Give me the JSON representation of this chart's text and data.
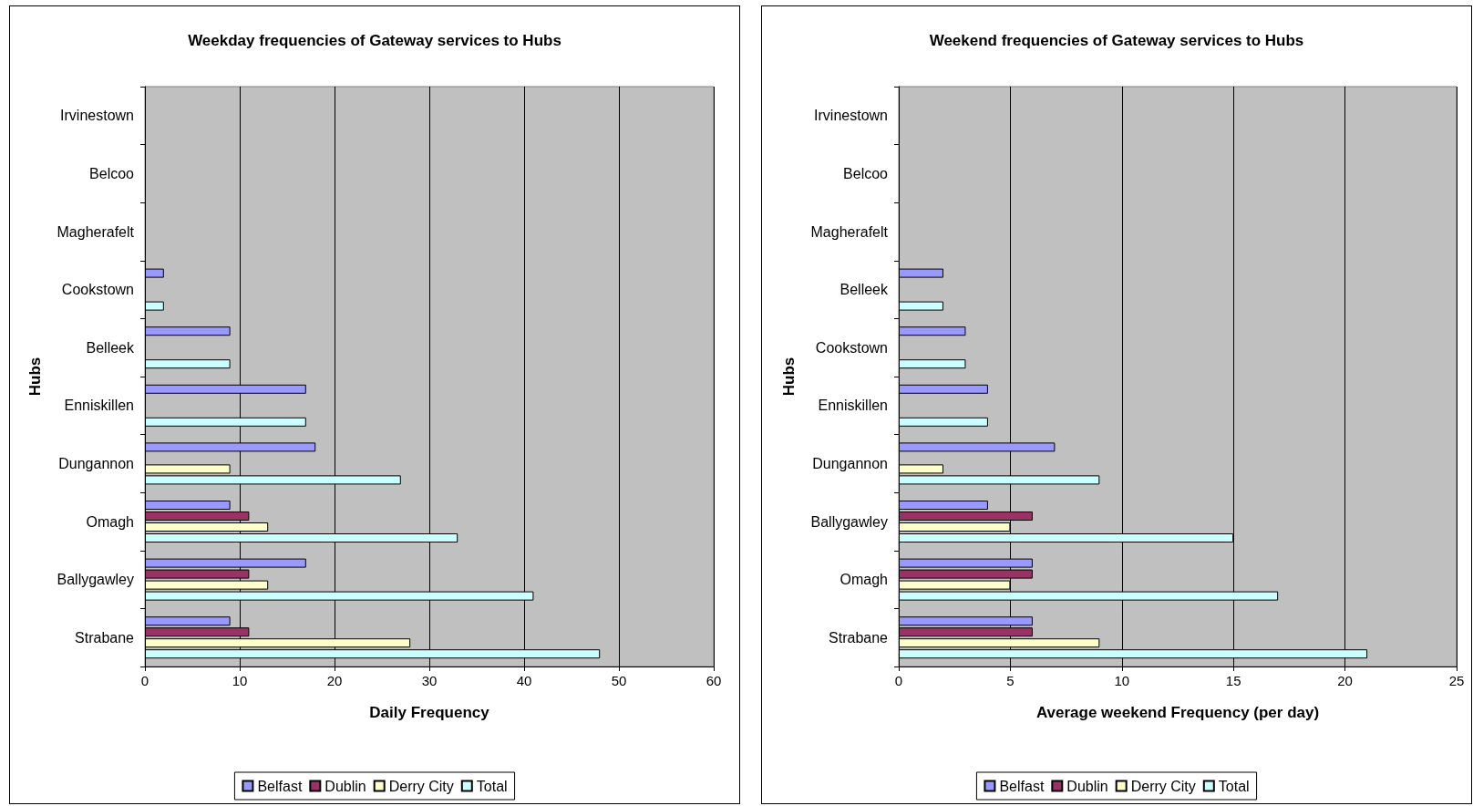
{
  "chart_data": [
    {
      "type": "bar",
      "orientation": "horizontal",
      "title": "Weekday frequencies of Gateway services to Hubs",
      "xlabel": "Daily Frequency",
      "ylabel": "Hubs",
      "categories": [
        "Irvinestown",
        "Belcoo",
        "Magherafelt",
        "Cookstown",
        "Belleek",
        "Enniskillen",
        "Dungannon",
        "Omagh",
        "Ballygawley",
        "Strabane"
      ],
      "series": [
        {
          "name": "Belfast",
          "color": "#9999ff",
          "values": [
            null,
            null,
            null,
            2,
            9,
            17,
            18,
            9,
            17,
            9
          ]
        },
        {
          "name": "Dublin",
          "color": "#993366",
          "values": [
            null,
            null,
            null,
            null,
            null,
            null,
            null,
            11,
            11,
            11
          ]
        },
        {
          "name": "Derry City",
          "color": "#ffffcc",
          "values": [
            null,
            null,
            null,
            null,
            null,
            null,
            9,
            13,
            13,
            28
          ]
        },
        {
          "name": "Total",
          "color": "#ccffff",
          "values": [
            null,
            null,
            null,
            2,
            9,
            17,
            27,
            33,
            41,
            48
          ]
        }
      ],
      "xlim": [
        0,
        60
      ],
      "xticks": [
        0,
        10,
        20,
        30,
        40,
        50,
        60
      ],
      "grid": "x",
      "legend": "bottom"
    },
    {
      "type": "bar",
      "orientation": "horizontal",
      "title": "Weekend frequencies of Gateway services to Hubs",
      "xlabel": "Average weekend Frequency (per day)",
      "ylabel": "Hubs",
      "categories": [
        "Irvinestown",
        "Belcoo",
        "Magherafelt",
        "Belleek",
        "Cookstown",
        "Enniskillen",
        "Dungannon",
        "Ballygawley",
        "Omagh",
        "Strabane"
      ],
      "series": [
        {
          "name": "Belfast",
          "color": "#9999ff",
          "values": [
            null,
            null,
            null,
            2,
            3,
            4,
            7,
            4,
            6,
            6
          ]
        },
        {
          "name": "Dublin",
          "color": "#993366",
          "values": [
            null,
            null,
            null,
            null,
            null,
            null,
            null,
            6,
            6,
            6
          ]
        },
        {
          "name": "Derry City",
          "color": "#ffffcc",
          "values": [
            null,
            null,
            null,
            null,
            null,
            null,
            2,
            5,
            5,
            9
          ]
        },
        {
          "name": "Total",
          "color": "#ccffff",
          "values": [
            null,
            null,
            null,
            2,
            3,
            4,
            9,
            15,
            17,
            21
          ]
        }
      ],
      "xlim": [
        0,
        25
      ],
      "xticks": [
        0,
        5,
        10,
        15,
        20,
        25
      ],
      "grid": "x",
      "legend": "bottom"
    }
  ]
}
